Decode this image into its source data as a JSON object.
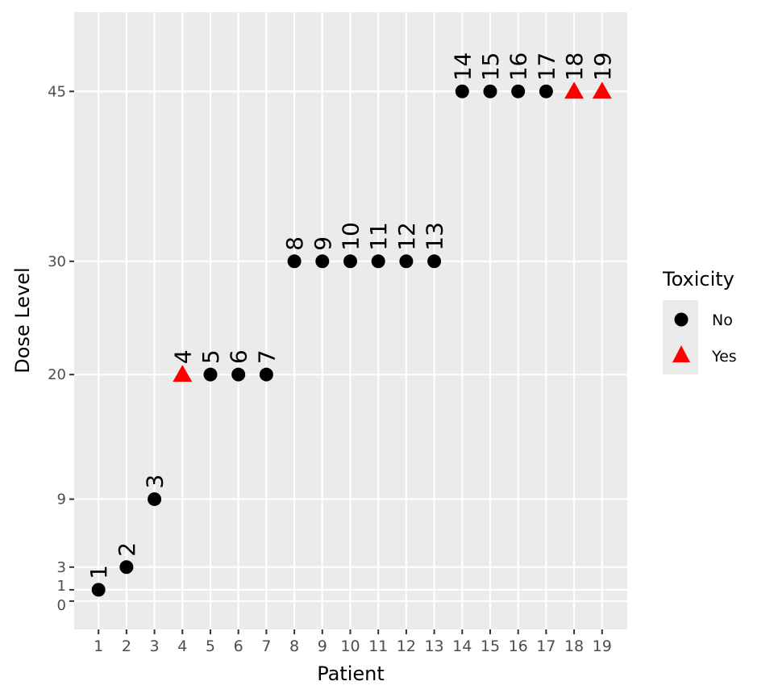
{
  "chart_data": {
    "type": "scatter",
    "title": "",
    "xlabel": "Patient",
    "ylabel": "Dose Level",
    "xlim": [
      0.13,
      19.9
    ],
    "ylim": [
      -2.5,
      52
    ],
    "x_ticks": [
      1,
      2,
      3,
      4,
      5,
      6,
      7,
      8,
      9,
      10,
      11,
      12,
      13,
      14,
      15,
      16,
      17,
      18,
      19
    ],
    "y_ticks": [
      0,
      1,
      3,
      9,
      20,
      30,
      45
    ],
    "grid": true,
    "legend": {
      "title": "Toxicity",
      "placement": "right",
      "entries": [
        {
          "label": "No",
          "shape": "circle",
          "color": "#000000"
        },
        {
          "label": "Yes",
          "shape": "triangle",
          "color": "#FF0000"
        }
      ]
    },
    "points": [
      {
        "patient": 1,
        "dose": 1,
        "toxicity": "No"
      },
      {
        "patient": 2,
        "dose": 3,
        "toxicity": "No"
      },
      {
        "patient": 3,
        "dose": 9,
        "toxicity": "No"
      },
      {
        "patient": 4,
        "dose": 20,
        "toxicity": "Yes"
      },
      {
        "patient": 5,
        "dose": 20,
        "toxicity": "No"
      },
      {
        "patient": 6,
        "dose": 20,
        "toxicity": "No"
      },
      {
        "patient": 7,
        "dose": 20,
        "toxicity": "No"
      },
      {
        "patient": 8,
        "dose": 30,
        "toxicity": "No"
      },
      {
        "patient": 9,
        "dose": 30,
        "toxicity": "No"
      },
      {
        "patient": 10,
        "dose": 30,
        "toxicity": "No"
      },
      {
        "patient": 11,
        "dose": 30,
        "toxicity": "No"
      },
      {
        "patient": 12,
        "dose": 30,
        "toxicity": "No"
      },
      {
        "patient": 13,
        "dose": 30,
        "toxicity": "No"
      },
      {
        "patient": 14,
        "dose": 45,
        "toxicity": "No"
      },
      {
        "patient": 15,
        "dose": 45,
        "toxicity": "No"
      },
      {
        "patient": 16,
        "dose": 45,
        "toxicity": "No"
      },
      {
        "patient": 17,
        "dose": 45,
        "toxicity": "No"
      },
      {
        "patient": 18,
        "dose": 45,
        "toxicity": "Yes"
      },
      {
        "patient": 19,
        "dose": 45,
        "toxicity": "Yes"
      }
    ],
    "colors": {
      "panel": "#EBEBEB",
      "grid": "#FFFFFF",
      "No": "#000000",
      "Yes": "#FF0000"
    }
  }
}
